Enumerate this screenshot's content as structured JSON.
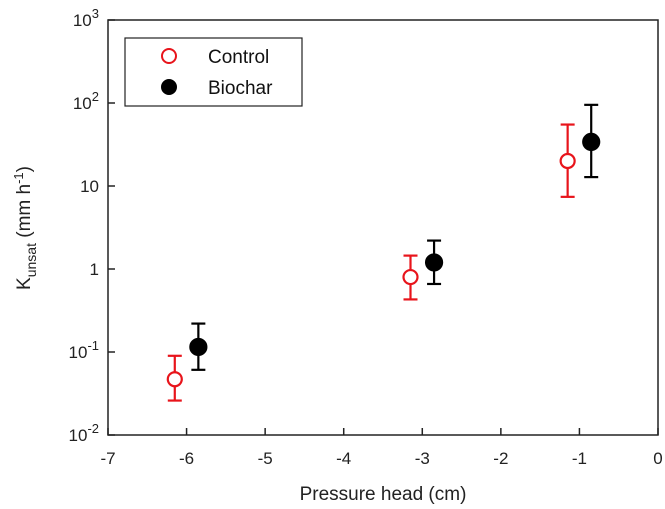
{
  "chart_data": {
    "type": "scatter",
    "xlabel": "Pressure head (cm)",
    "ylabel": {
      "base": "K",
      "sub": "unsat",
      "unit_pre": " (mm h",
      "unit_sup": "-1",
      "unit_post": ")"
    },
    "xlim": [
      -7,
      0
    ],
    "ylim": [
      0.01,
      1000
    ],
    "yscale": "log",
    "x_ticks": [
      "-7",
      "-6",
      "-5",
      "-4",
      "-3",
      "-2",
      "-1",
      "0"
    ],
    "y_ticks": [
      {
        "value": 0.01,
        "base": "10",
        "sup": "-2"
      },
      {
        "value": 0.1,
        "base": "10",
        "sup": "-1"
      },
      {
        "value": 1,
        "base": "1",
        "sup": ""
      },
      {
        "value": 10,
        "base": "10",
        "sup": ""
      },
      {
        "value": 100,
        "base": "10",
        "sup": "2"
      },
      {
        "value": 1000,
        "base": "10",
        "sup": "3"
      }
    ],
    "grid": false,
    "legend_position": "top-left",
    "series": [
      {
        "name": "Control",
        "color": "#e8141b",
        "marker": "open-circle",
        "points": [
          {
            "x": -6.15,
            "y": 0.047,
            "low": 0.026,
            "high": 0.09
          },
          {
            "x": -3.15,
            "y": 0.8,
            "low": 0.43,
            "high": 1.45
          },
          {
            "x": -1.15,
            "y": 20,
            "low": 7.4,
            "high": 55
          }
        ]
      },
      {
        "name": "Biochar",
        "color": "#000000",
        "marker": "filled-circle",
        "points": [
          {
            "x": -5.85,
            "y": 0.115,
            "low": 0.061,
            "high": 0.22
          },
          {
            "x": -2.85,
            "y": 1.2,
            "low": 0.66,
            "high": 2.2
          },
          {
            "x": -0.85,
            "y": 34,
            "low": 12.8,
            "high": 95
          }
        ]
      }
    ]
  }
}
